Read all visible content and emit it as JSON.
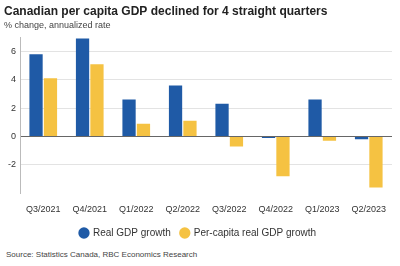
{
  "chart_data": {
    "type": "bar",
    "title": "Canadian per capita GDP declined for 4 straight quarters",
    "subtitle": "% change, annualized rate",
    "source": "Source: Statistics Canada, RBC Economics Research",
    "categories": [
      "Q3/2021",
      "Q4/2021",
      "Q1/2022",
      "Q2/2022",
      "Q3/2022",
      "Q4/2022",
      "Q1/2023",
      "Q2/2023"
    ],
    "series": [
      {
        "name": "Real GDP growth",
        "color": "#1f5aa6",
        "values": [
          5.8,
          6.9,
          2.6,
          3.6,
          2.3,
          -0.1,
          2.6,
          -0.2
        ]
      },
      {
        "name": "Per-capita real GDP growth",
        "color": "#f5c242",
        "values": [
          4.1,
          5.1,
          0.9,
          1.1,
          -0.7,
          -2.8,
          -0.3,
          -3.6
        ]
      }
    ],
    "ylim": [
      -4,
      7
    ],
    "yticks": [
      -2,
      0,
      2,
      4,
      6
    ],
    "grid": true,
    "legend": "bottom"
  }
}
